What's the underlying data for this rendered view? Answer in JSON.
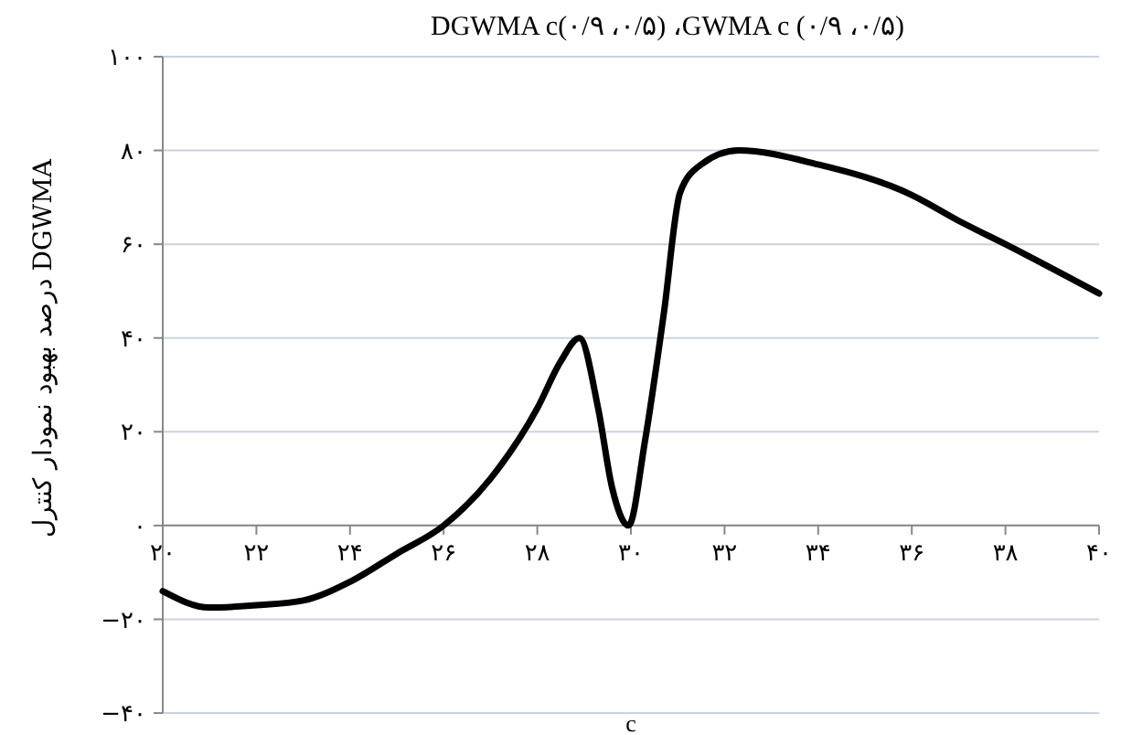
{
  "chart_data": {
    "type": "line",
    "title": "DGWMA c(۰/۹ ،۰/۵) ،GWMA c (۰/۹ ،۰/۵)",
    "xlabel": "c",
    "ylabel": "درصد بهبود نمودار کنترل DGWMA",
    "x": [
      20,
      21,
      22,
      23,
      24,
      25,
      26,
      27,
      28,
      28.5,
      28.9,
      29.3,
      29.6,
      29.95,
      30.3,
      30.7,
      31.05,
      31.5,
      32.3,
      34,
      36,
      37,
      38,
      40
    ],
    "series": [
      {
        "color": "#000000",
        "values": [
          -14,
          -17.5,
          -17,
          -16,
          -12,
          -6,
          0,
          10,
          25,
          35,
          40,
          25,
          8,
          0,
          18,
          45,
          71,
          77,
          80,
          77,
          70.5,
          65,
          60,
          49.5
        ]
      }
    ],
    "xlim": [
      20,
      40
    ],
    "xticks": [
      {
        "value": 20,
        "label": "۲۰"
      },
      {
        "value": 22,
        "label": "۲۲"
      },
      {
        "value": 24,
        "label": "۲۴"
      },
      {
        "value": 26,
        "label": "۲۶"
      },
      {
        "value": 28,
        "label": "۲۸"
      },
      {
        "value": 30,
        "label": "۳۰"
      },
      {
        "value": 32,
        "label": "۳۲"
      },
      {
        "value": 34,
        "label": "۳۴"
      },
      {
        "value": 36,
        "label": "۳۶"
      },
      {
        "value": 38,
        "label": "۳۸"
      },
      {
        "value": 40,
        "label": "۴۰"
      }
    ],
    "ylim": [
      -40,
      100
    ],
    "yticks": [
      {
        "value": -40,
        "label": "−۴۰"
      },
      {
        "value": -20,
        "label": "−۲۰"
      },
      {
        "value": 0,
        "label": "۰"
      },
      {
        "value": 20,
        "label": "۲۰"
      },
      {
        "value": 40,
        "label": "۴۰"
      },
      {
        "value": 60,
        "label": "۶۰"
      },
      {
        "value": 80,
        "label": "۸۰"
      },
      {
        "value": 100,
        "label": "۱۰۰"
      }
    ],
    "grid": "y",
    "marker": "none",
    "line_style": "solid"
  }
}
